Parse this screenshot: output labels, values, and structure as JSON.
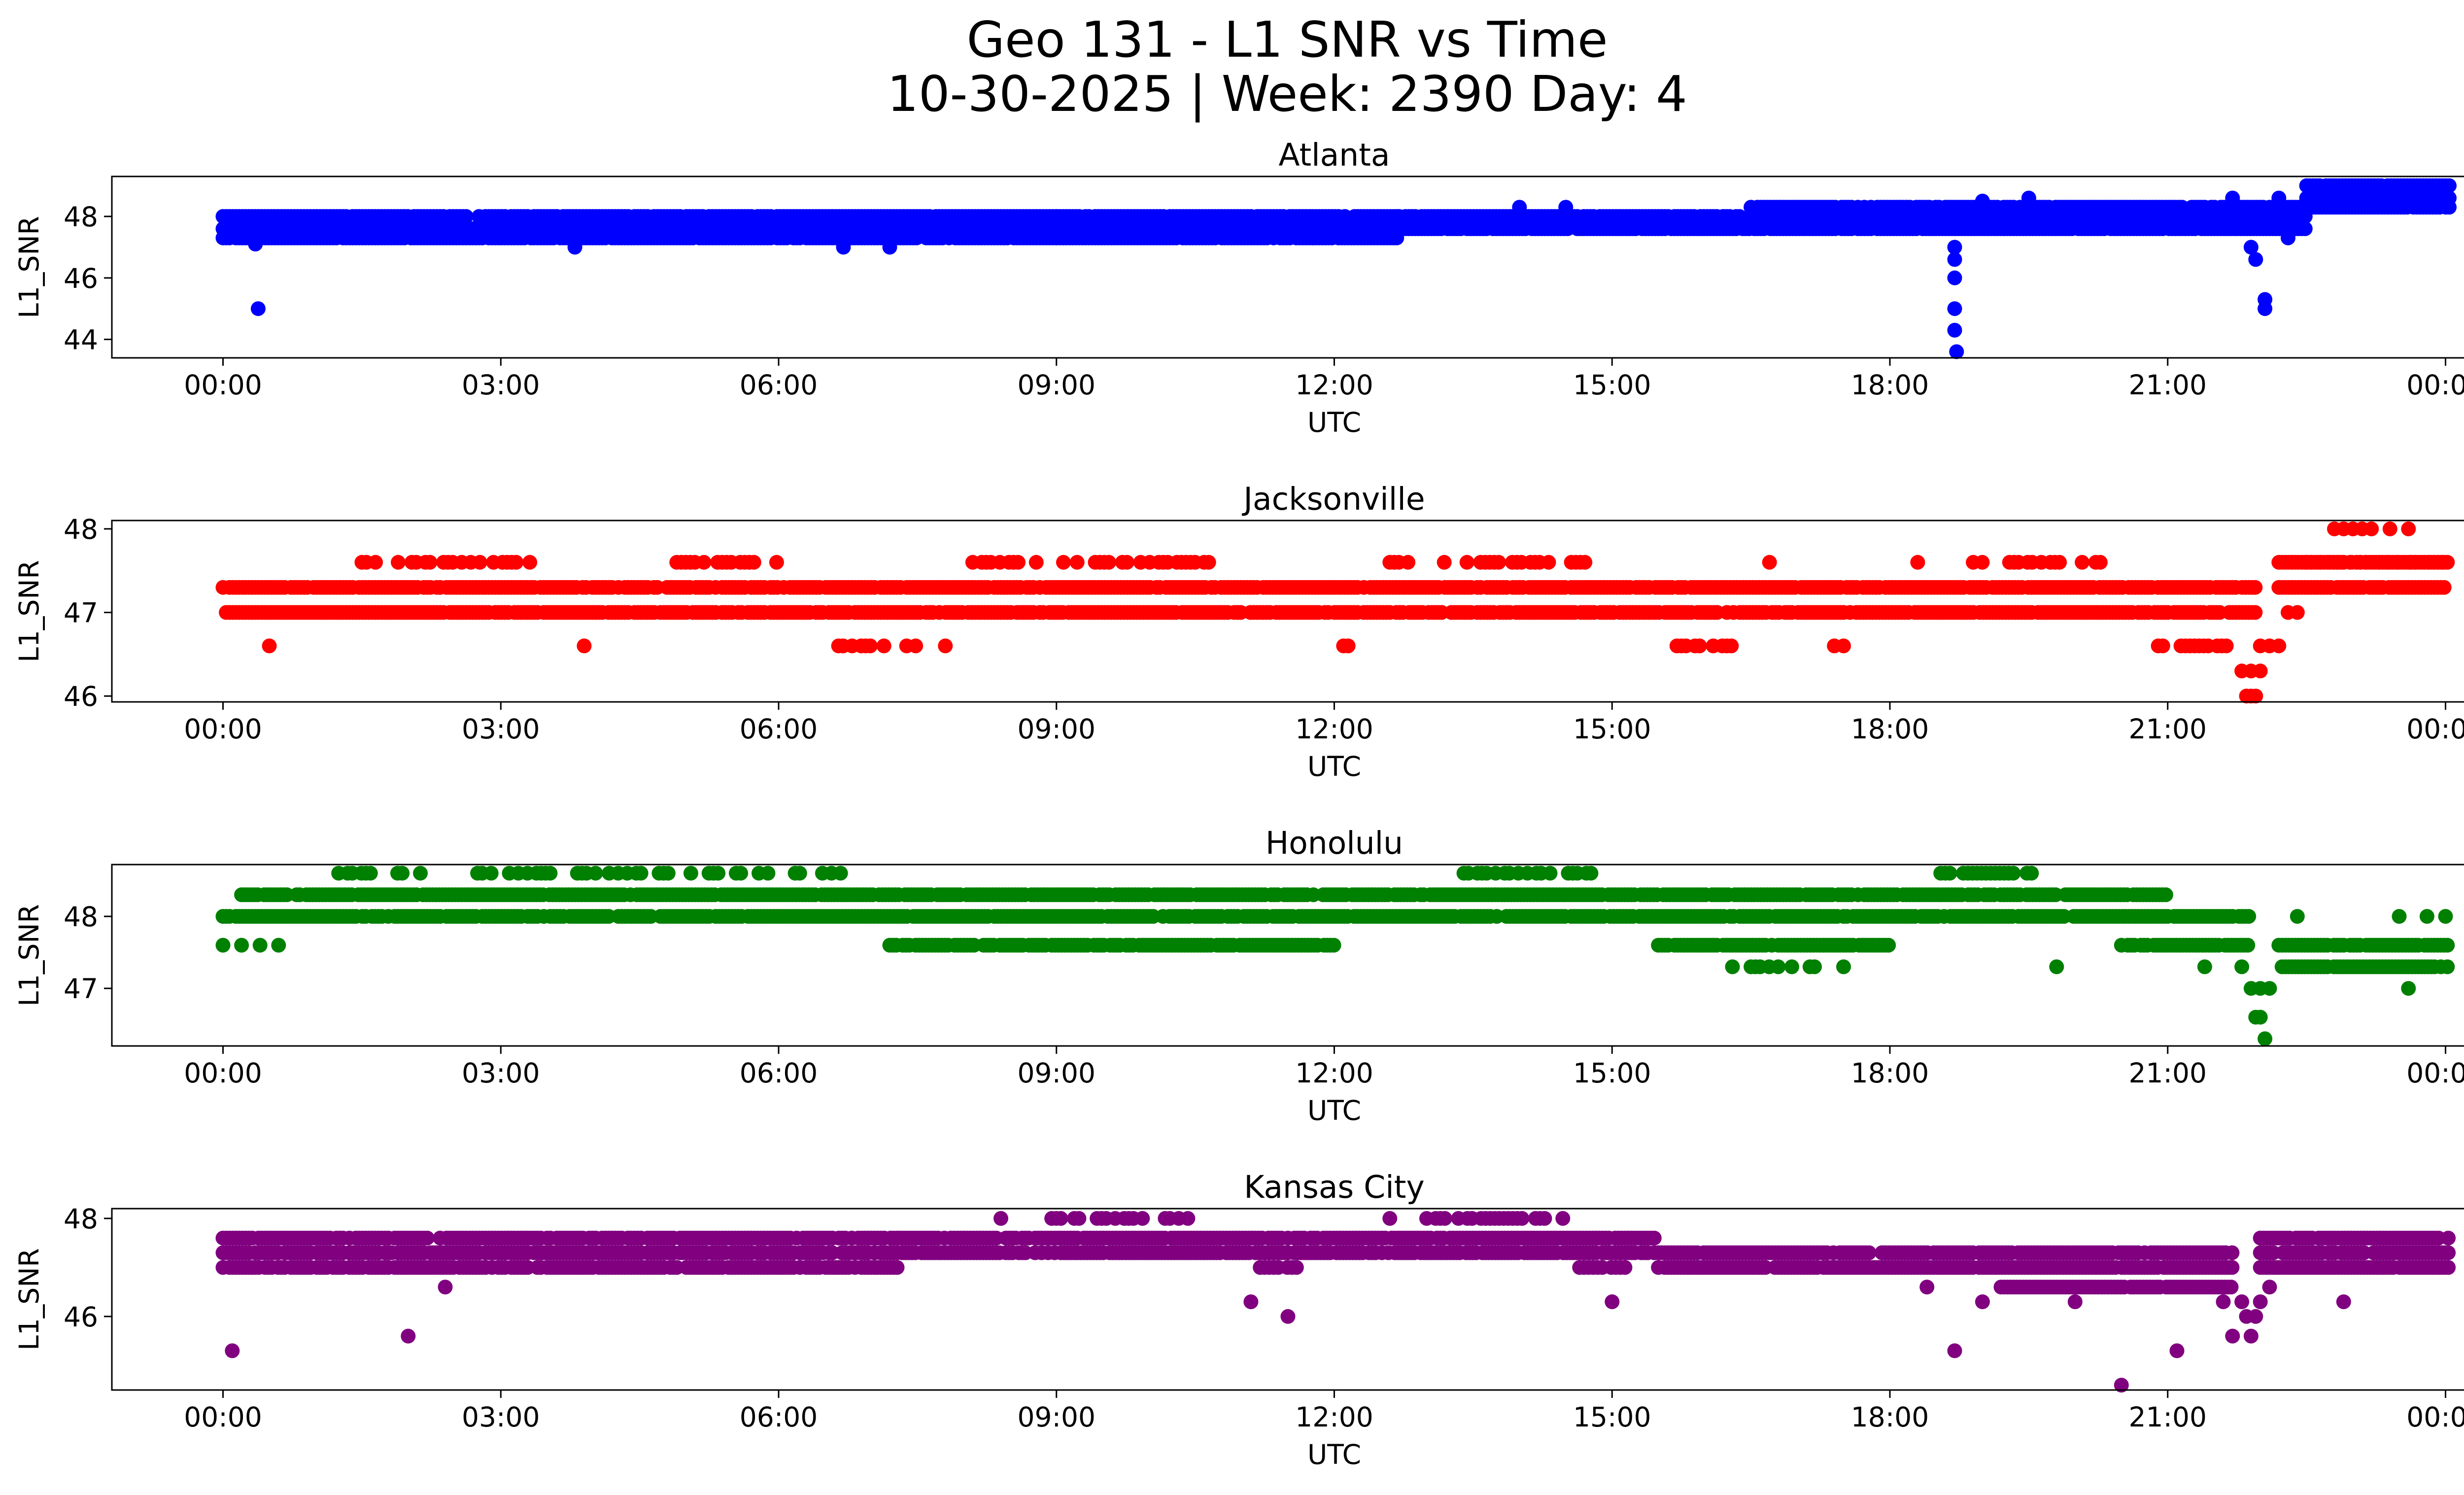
{
  "title_line1": "Geo 131 - L1 SNR vs Time",
  "title_line2": "10-30-2025 | Week: 2390 Day: 4",
  "x_ticks": [
    "00:00",
    "03:00",
    "06:00",
    "09:00",
    "12:00",
    "15:00",
    "18:00",
    "21:00",
    "00:00"
  ],
  "chart_data": [
    {
      "type": "scatter",
      "title": "Atlanta",
      "xlabel": "UTC",
      "ylabel": "L1_SNR",
      "color": "#0000ff",
      "xlim_hours": [
        -1.2,
        25.2
      ],
      "ylim": [
        43.4,
        49.3
      ],
      "yticks": [
        44,
        46,
        48
      ],
      "baseline": [
        [
          0,
          47.6
        ],
        [
          4,
          47.5
        ],
        [
          8,
          47.6
        ],
        [
          12,
          47.6
        ],
        [
          15,
          47.8
        ],
        [
          17,
          48.0
        ],
        [
          19,
          48.2
        ],
        [
          21,
          48.0
        ],
        [
          22.3,
          48.2
        ],
        [
          23,
          48.5
        ],
        [
          24,
          48.6
        ]
      ],
      "levels": [
        [
          0,
          9,
          [
            47.3,
            47.6,
            48.0
          ]
        ],
        [
          9,
          12.7,
          [
            47.3,
            47.6,
            48.0
          ]
        ],
        [
          12.7,
          16.5,
          [
            47.6,
            48.0
          ]
        ],
        [
          16.5,
          22.5,
          [
            47.6,
            48.0,
            48.3
          ]
        ],
        [
          22.5,
          24.05,
          [
            48.3,
            48.6,
            49.0
          ]
        ]
      ],
      "scatter_band": 0.3,
      "outliers": [
        [
          0.38,
          45.0
        ],
        [
          0.35,
          47.1
        ],
        [
          3.8,
          47.0
        ],
        [
          6.7,
          47.0
        ],
        [
          7.2,
          47.0
        ],
        [
          14.0,
          48.3
        ],
        [
          14.5,
          48.3
        ],
        [
          18.7,
          47.0
        ],
        [
          18.7,
          46.6
        ],
        [
          18.7,
          46.0
        ],
        [
          18.7,
          45.0
        ],
        [
          18.7,
          44.3
        ],
        [
          18.72,
          43.6
        ],
        [
          19.0,
          48.5
        ],
        [
          19.5,
          48.6
        ],
        [
          21.7,
          48.6
        ],
        [
          21.9,
          47.0
        ],
        [
          21.95,
          46.6
        ],
        [
          22.05,
          45.3
        ],
        [
          22.05,
          45.0
        ],
        [
          22.2,
          48.6
        ],
        [
          22.3,
          47.3
        ]
      ]
    },
    {
      "type": "scatter",
      "title": "Jacksonville",
      "xlabel": "UTC",
      "ylabel": "L1_SNR",
      "color": "#ff0000",
      "xlim_hours": [
        -1.2,
        25.2
      ],
      "ylim": [
        45.93,
        48.1
      ],
      "yticks": [
        46,
        47,
        48
      ],
      "levels": [
        [
          0,
          21.95,
          [
            47.0,
            47.3
          ]
        ],
        [
          22.2,
          24.05,
          [
            47.3,
            47.6
          ]
        ]
      ],
      "sparse_levels": [
        [
          1.5,
          3.5,
          47.6
        ],
        [
          4.9,
          6.0,
          47.6
        ],
        [
          7.9,
          10.7,
          47.6
        ],
        [
          12.6,
          14.8,
          47.6
        ],
        [
          18.9,
          20.3,
          47.6
        ],
        [
          22.4,
          24.0,
          47.6
        ],
        [
          6.5,
          7.5,
          46.6
        ],
        [
          15.7,
          16.3,
          46.6
        ],
        [
          20.8,
          21.8,
          46.6
        ]
      ],
      "outliers": [
        [
          0.5,
          46.6
        ],
        [
          3.9,
          46.6
        ],
        [
          7.8,
          46.6
        ],
        [
          12.1,
          46.6
        ],
        [
          12.15,
          46.6
        ],
        [
          17.4,
          46.6
        ],
        [
          17.5,
          46.6
        ],
        [
          16.7,
          47.6
        ],
        [
          18.3,
          47.6
        ],
        [
          21.8,
          46.3
        ],
        [
          21.9,
          46.3
        ],
        [
          22.0,
          46.3
        ],
        [
          21.85,
          46.0
        ],
        [
          21.9,
          46.0
        ],
        [
          21.95,
          46.0
        ],
        [
          22.0,
          46.6
        ],
        [
          22.1,
          46.6
        ],
        [
          22.2,
          46.6
        ],
        [
          22.3,
          47.0
        ],
        [
          22.4,
          47.0
        ],
        [
          22.8,
          48.0
        ],
        [
          22.9,
          48.0
        ],
        [
          23.0,
          48.0
        ],
        [
          23.1,
          48.0
        ],
        [
          23.2,
          48.0
        ],
        [
          23.4,
          48.0
        ],
        [
          23.6,
          48.0
        ]
      ]
    },
    {
      "type": "scatter",
      "title": "Honolulu",
      "xlabel": "UTC",
      "ylabel": "L1_SNR",
      "color": "#008000",
      "xlim_hours": [
        -1.2,
        25.2
      ],
      "ylim": [
        46.2,
        48.72
      ],
      "yticks": [
        47,
        48
      ],
      "levels": [
        [
          0,
          21.9,
          [
            48.0
          ]
        ],
        [
          0.2,
          6.7,
          [
            48.3
          ]
        ],
        [
          6.7,
          21.0,
          [
            48.3
          ]
        ],
        [
          7.2,
          12.0,
          [
            47.6
          ]
        ],
        [
          15.5,
          18.0,
          [
            47.6
          ]
        ],
        [
          20.5,
          21.9,
          [
            47.6
          ]
        ],
        [
          22.2,
          24.05,
          [
            47.3,
            47.6
          ]
        ]
      ],
      "sparse_levels": [
        [
          1.2,
          2.2,
          48.6
        ],
        [
          2.7,
          6.7,
          48.6
        ],
        [
          18.5,
          19.6,
          48.6
        ],
        [
          13.4,
          14.8,
          48.6
        ],
        [
          16.5,
          17.2,
          47.3
        ]
      ],
      "outliers": [
        [
          0.0,
          47.6
        ],
        [
          0.2,
          47.6
        ],
        [
          0.4,
          47.6
        ],
        [
          0.6,
          47.6
        ],
        [
          16.3,
          47.3
        ],
        [
          17.5,
          47.3
        ],
        [
          19.8,
          47.3
        ],
        [
          21.4,
          47.3
        ],
        [
          21.8,
          47.3
        ],
        [
          21.9,
          47.0
        ],
        [
          22.0,
          47.0
        ],
        [
          22.1,
          47.0
        ],
        [
          21.95,
          46.6
        ],
        [
          22.0,
          46.6
        ],
        [
          22.05,
          46.3
        ],
        [
          23.6,
          47.0
        ],
        [
          24.0,
          48.0
        ],
        [
          23.5,
          48.0
        ],
        [
          23.8,
          48.0
        ],
        [
          22.4,
          48.0
        ]
      ]
    },
    {
      "type": "scatter",
      "title": "Kansas City",
      "xlabel": "UTC",
      "ylabel": "L1_SNR",
      "color": "#800080",
      "xlim_hours": [
        -1.2,
        25.2
      ],
      "ylim": [
        44.5,
        48.2
      ],
      "yticks": [
        46,
        48
      ],
      "levels": [
        [
          0,
          7.3,
          [
            47.0,
            47.3,
            47.6
          ]
        ],
        [
          7.3,
          15.5,
          [
            47.3,
            47.6
          ]
        ],
        [
          15.5,
          21.7,
          [
            47.0,
            47.3
          ]
        ],
        [
          19.2,
          21.7,
          [
            46.6
          ]
        ],
        [
          22.0,
          24.05,
          [
            47.0,
            47.3,
            47.6
          ]
        ]
      ],
      "sparse_levels": [
        [
          8.9,
          10.5,
          48.0
        ],
        [
          12.9,
          14.5,
          48.0
        ],
        [
          11.2,
          11.6,
          47.0
        ],
        [
          14.6,
          15.2,
          47.0
        ]
      ],
      "outliers": [
        [
          0.1,
          45.3
        ],
        [
          2.0,
          45.6
        ],
        [
          2.4,
          46.6
        ],
        [
          8.4,
          48.0
        ],
        [
          12.6,
          48.0
        ],
        [
          11.1,
          46.3
        ],
        [
          11.5,
          46.0
        ],
        [
          15.0,
          46.3
        ],
        [
          18.4,
          46.6
        ],
        [
          18.7,
          45.3
        ],
        [
          19.0,
          46.3
        ],
        [
          20.0,
          46.3
        ],
        [
          20.5,
          44.6
        ],
        [
          21.1,
          45.3
        ],
        [
          21.6,
          46.3
        ],
        [
          21.7,
          45.6
        ],
        [
          21.8,
          46.3
        ],
        [
          21.85,
          46.0
        ],
        [
          21.9,
          45.6
        ],
        [
          21.95,
          46.0
        ],
        [
          22.0,
          46.3
        ],
        [
          22.1,
          46.6
        ],
        [
          22.9,
          46.3
        ]
      ]
    }
  ]
}
